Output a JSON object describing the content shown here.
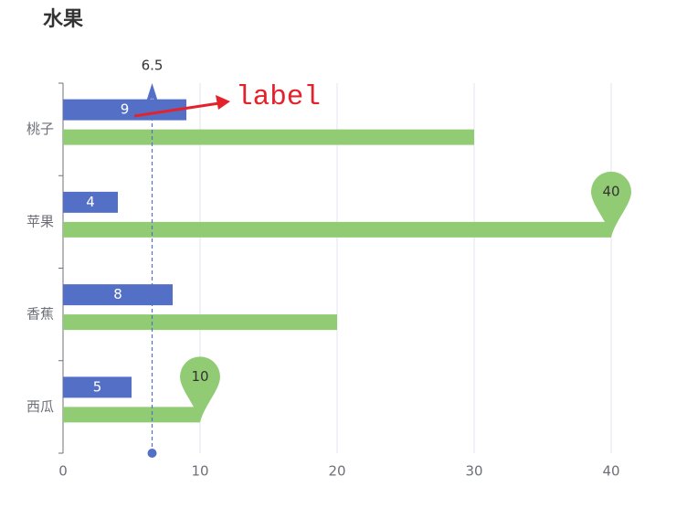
{
  "chart_data": {
    "type": "bar",
    "orientation": "horizontal",
    "title": "水果",
    "categories": [
      "西瓜",
      "香蕉",
      "苹果",
      "桃子"
    ],
    "series": [
      {
        "color": "#5470c6",
        "values": [
          5,
          8,
          4,
          9
        ],
        "show_labels": true,
        "mark_line": 6.5
      },
      {
        "color": "#91cc75",
        "values": [
          10,
          20,
          40,
          30
        ],
        "mark_points": [
          40,
          10
        ]
      }
    ],
    "xlim": [
      0,
      40
    ],
    "xticks": [
      0,
      10,
      20,
      30,
      40
    ],
    "grid": true,
    "annotation": {
      "text": "label",
      "color": "#e3222b"
    }
  }
}
